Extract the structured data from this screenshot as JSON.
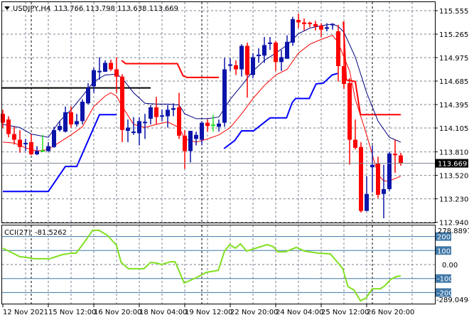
{
  "header": {
    "symbol": "USDJPY,H4",
    "ohlc_text": "113.766 113.798 113.638 113.669"
  },
  "colors": {
    "bull": "#0a14a8",
    "bear": "#ff0000",
    "doji": "#22dd22",
    "ma_fast": "#000080",
    "ma_slow": "#ff0000",
    "channel_low": "#0000ff",
    "channel_high": "#ff0000",
    "level": "#000000",
    "cci_line": "#80e020",
    "cci_levels": "#3f78a8",
    "grid": "#7a8290"
  },
  "chart_data": [
    {
      "type": "candlestick",
      "title": "USDJPY,H4",
      "ylim": [
        112.94,
        115.65
      ],
      "y_ticks": [
        "115.555",
        "115.265",
        "114.975",
        "114.685",
        "114.395",
        "114.105",
        "113.810",
        "113.520",
        "113.230",
        "112.940"
      ],
      "current_price": "113.669",
      "x_labels": [
        "12 Nov 2021",
        "15 Nov 12:00",
        "16 Nov 20:00",
        "18 Nov 04:00",
        "19 Nov 12:00",
        "22 Nov 20:00",
        "24 Nov 04:00",
        "25 Nov 12:00",
        "26 Nov 20:00"
      ],
      "x_label_bars": [
        0,
        8,
        16,
        24,
        32,
        40,
        48,
        56,
        64
      ],
      "period_separator_bars": [
        5,
        35,
        65
      ],
      "candles_ohlc": [
        [
          114.28,
          114.33,
          114.11,
          114.17
        ],
        [
          114.21,
          114.25,
          113.99,
          114.03
        ],
        [
          114.03,
          114.12,
          113.9,
          113.96
        ],
        [
          113.96,
          114.08,
          113.8,
          113.87
        ],
        [
          113.91,
          113.97,
          113.82,
          113.915
        ],
        [
          113.93,
          114.03,
          113.77,
          113.78
        ],
        [
          113.78,
          113.88,
          113.77,
          113.82
        ],
        [
          113.82,
          114.02,
          113.81,
          113.82
        ],
        [
          113.82,
          113.93,
          113.81,
          113.88
        ],
        [
          113.87,
          114.12,
          113.86,
          114.08
        ],
        [
          114.08,
          114.19,
          114.06,
          114.13
        ],
        [
          114.06,
          114.37,
          114.05,
          114.3
        ],
        [
          114.3,
          114.37,
          114.11,
          114.15
        ],
        [
          114.15,
          114.28,
          114.12,
          114.19
        ],
        [
          114.19,
          114.46,
          114.15,
          114.43
        ],
        [
          114.41,
          114.66,
          114.4,
          114.6
        ],
        [
          114.62,
          114.85,
          114.54,
          114.82
        ],
        [
          114.8,
          114.98,
          114.7,
          114.805
        ],
        [
          114.8,
          114.94,
          114.8,
          114.91
        ],
        [
          114.91,
          114.95,
          114.81,
          114.83
        ],
        [
          114.83,
          114.98,
          114.54,
          114.74
        ],
        [
          114.74,
          114.77,
          113.93,
          114.08
        ],
        [
          114.07,
          114.21,
          113.93,
          114.11
        ],
        [
          114.05,
          114.24,
          114.02,
          114.055
        ],
        [
          114.04,
          114.24,
          113.89,
          114.19
        ],
        [
          114.17,
          114.28,
          113.97,
          114.175
        ],
        [
          114.22,
          114.39,
          114.15,
          114.36
        ],
        [
          114.36,
          114.49,
          114.15,
          114.24
        ],
        [
          114.25,
          114.33,
          114.19,
          114.255
        ],
        [
          114.25,
          114.39,
          114.11,
          114.33
        ],
        [
          114.33,
          114.41,
          114.25,
          114.35
        ],
        [
          114.36,
          114.54,
          113.97,
          114.01
        ],
        [
          114.01,
          114.08,
          113.6,
          113.82
        ],
        [
          113.82,
          114.07,
          113.68,
          114.07
        ],
        [
          113.97,
          114.06,
          113.89,
          114.02
        ],
        [
          113.96,
          114.19,
          113.89,
          114.17
        ],
        [
          114.17,
          114.21,
          114.06,
          114.13
        ],
        [
          114.14,
          114.27,
          114.06,
          114.14
        ],
        [
          114.12,
          114.21,
          114.06,
          114.16
        ],
        [
          114.17,
          114.97,
          114.12,
          114.83
        ],
        [
          114.88,
          114.97,
          114.81,
          114.885
        ],
        [
          114.88,
          114.94,
          114.76,
          114.83
        ],
        [
          114.83,
          115.14,
          114.74,
          115.12
        ],
        [
          115.12,
          115.16,
          114.48,
          114.76
        ],
        [
          114.76,
          115.03,
          114.72,
          114.98
        ],
        [
          115.0,
          115.09,
          114.91,
          115.005
        ],
        [
          115.0,
          115.23,
          114.91,
          115.13
        ],
        [
          115.15,
          115.23,
          115.07,
          115.155
        ],
        [
          115.16,
          115.18,
          114.81,
          114.92
        ],
        [
          114.92,
          115.07,
          114.81,
          114.98
        ],
        [
          114.96,
          115.25,
          114.96,
          115.17
        ],
        [
          115.16,
          115.48,
          115.12,
          115.45
        ],
        [
          115.44,
          115.52,
          115.34,
          115.41
        ],
        [
          115.41,
          115.46,
          115.31,
          115.39
        ],
        [
          115.4,
          115.42,
          115.35,
          115.395
        ],
        [
          115.39,
          115.43,
          115.31,
          115.36
        ],
        [
          115.37,
          115.4,
          115.23,
          115.32
        ],
        [
          115.33,
          115.4,
          115.3,
          115.35
        ],
        [
          115.38,
          115.4,
          115.32,
          115.385
        ],
        [
          115.3,
          115.38,
          114.68,
          114.87
        ],
        [
          114.87,
          115.42,
          114.59,
          114.65
        ],
        [
          114.66,
          114.72,
          113.65,
          113.96
        ],
        [
          113.96,
          114.21,
          113.84,
          113.86
        ],
        [
          113.87,
          113.93,
          113.06,
          113.08
        ],
        [
          113.08,
          113.51,
          113.08,
          113.29
        ],
        [
          113.62,
          113.89,
          113.31,
          113.65
        ],
        [
          113.67,
          113.75,
          113.24,
          113.28
        ],
        [
          113.29,
          113.65,
          112.99,
          113.35
        ],
        [
          113.35,
          113.81,
          113.33,
          113.79
        ],
        [
          113.78,
          113.96,
          113.55,
          113.775
        ],
        [
          113.766,
          113.798,
          113.638,
          113.669
        ]
      ],
      "green_doji_bars": [
        7,
        37
      ],
      "ma_fast": [
        [
          0,
          114.15
        ],
        [
          3,
          114.11
        ],
        [
          5,
          114.03
        ],
        [
          8,
          113.99
        ],
        [
          10,
          114.19
        ],
        [
          12,
          114.33
        ],
        [
          14,
          114.5
        ],
        [
          16,
          114.68
        ],
        [
          18,
          114.76
        ],
        [
          20,
          114.77
        ],
        [
          21,
          114.72
        ],
        [
          23,
          114.54
        ],
        [
          25,
          114.41
        ],
        [
          27,
          114.4
        ],
        [
          29,
          114.4
        ],
        [
          31,
          114.39
        ],
        [
          32,
          114.28
        ],
        [
          34,
          114.22
        ],
        [
          36,
          114.22
        ],
        [
          38,
          114.24
        ],
        [
          40,
          114.46
        ],
        [
          42,
          114.63
        ],
        [
          44,
          114.81
        ],
        [
          46,
          114.94
        ],
        [
          48,
          115.03
        ],
        [
          50,
          115.13
        ],
        [
          52,
          115.27
        ],
        [
          54,
          115.34
        ],
        [
          56,
          115.37
        ],
        [
          58,
          115.39
        ],
        [
          59,
          115.36
        ],
        [
          60,
          115.29
        ],
        [
          62,
          114.98
        ],
        [
          64,
          114.54
        ],
        [
          66,
          114.19
        ],
        [
          68,
          113.99
        ],
        [
          69,
          113.96
        ],
        [
          70,
          113.93
        ]
      ],
      "ma_slow": [
        [
          0,
          113.93
        ],
        [
          2,
          113.92
        ],
        [
          4,
          113.86
        ],
        [
          6,
          113.82
        ],
        [
          8,
          113.84
        ],
        [
          10,
          113.93
        ],
        [
          12,
          114.02
        ],
        [
          14,
          114.12
        ],
        [
          16,
          114.37
        ],
        [
          18,
          114.5
        ],
        [
          19,
          114.54
        ],
        [
          20,
          114.5
        ],
        [
          21,
          114.37
        ],
        [
          23,
          114.15
        ],
        [
          25,
          114.11
        ],
        [
          27,
          114.15
        ],
        [
          29,
          114.18
        ],
        [
          31,
          114.11
        ],
        [
          32,
          113.97
        ],
        [
          34,
          113.93
        ],
        [
          36,
          113.97
        ],
        [
          38,
          114.02
        ],
        [
          40,
          114.11
        ],
        [
          42,
          114.28
        ],
        [
          44,
          114.47
        ],
        [
          46,
          114.63
        ],
        [
          48,
          114.76
        ],
        [
          50,
          114.83
        ],
        [
          52,
          115.03
        ],
        [
          54,
          115.14
        ],
        [
          56,
          115.2
        ],
        [
          58,
          115.25
        ],
        [
          59,
          115.16
        ],
        [
          60,
          114.98
        ],
        [
          61,
          114.81
        ],
        [
          62,
          114.46
        ],
        [
          64,
          114.02
        ],
        [
          66,
          113.53
        ],
        [
          67,
          113.45
        ],
        [
          68,
          113.45
        ],
        [
          70,
          113.51
        ]
      ],
      "channel_low": [
        [
          [
            0,
            113.32
          ],
          [
            8,
            113.32
          ],
          [
            11,
            113.63
          ],
          [
            13,
            113.63
          ],
          [
            17,
            114.27
          ],
          [
            20,
            114.27
          ]
        ],
        [
          [
            38.9,
            113.85
          ],
          [
            40.8,
            113.95
          ],
          [
            42,
            114.07
          ],
          [
            44.1,
            114.07
          ],
          [
            47,
            114.23
          ],
          [
            49.9,
            114.23
          ],
          [
            50.9,
            114.42
          ],
          [
            51.5,
            114.47
          ],
          [
            53.9,
            114.47
          ],
          [
            55.1,
            114.65
          ],
          [
            56.4,
            114.66
          ],
          [
            57.9,
            114.76
          ],
          [
            58.9,
            114.78
          ]
        ]
      ],
      "channel_high": [
        [
          [
            20.9,
            114.94
          ],
          [
            21.6,
            114.9
          ],
          [
            30.7,
            114.9
          ],
          [
            31.7,
            114.75
          ],
          [
            32.4,
            114.73
          ],
          [
            38,
            114.73
          ]
        ],
        [
          [
            59.9,
            115.42
          ],
          [
            60.4,
            114.7
          ],
          [
            62,
            114.68
          ],
          [
            62.9,
            114.27
          ],
          [
            70,
            114.27
          ]
        ]
      ],
      "level_line": {
        "price": 114.6,
        "from_bar": -0.3,
        "to_bar": 26
      }
    },
    {
      "type": "line",
      "title": "CCI(27)",
      "last_value": "-81.5262",
      "max_label": "278.8897",
      "min_label": "-289.0494",
      "ylim": [
        -289.0494,
        278.8897
      ],
      "levels": [
        200,
        100,
        -100,
        -200
      ],
      "level_labels": [
        "200",
        "100",
        "-100",
        "-200"
      ],
      "zero_label": "0.00",
      "points": [
        [
          0,
          117
        ],
        [
          3,
          56
        ],
        [
          4.2,
          51
        ],
        [
          5.5,
          41
        ],
        [
          8.2,
          41
        ],
        [
          10.5,
          71
        ],
        [
          12.1,
          81
        ],
        [
          12.9,
          81
        ],
        [
          14.2,
          152
        ],
        [
          15.8,
          244
        ],
        [
          16.9,
          244
        ],
        [
          18.4,
          208
        ],
        [
          20,
          137
        ],
        [
          20.8,
          15
        ],
        [
          22.1,
          -30
        ],
        [
          24.8,
          -30
        ],
        [
          26,
          15
        ],
        [
          27.1,
          10
        ],
        [
          27.9,
          0
        ],
        [
          29.5,
          20
        ],
        [
          30.3,
          20
        ],
        [
          31.9,
          -132
        ],
        [
          34.2,
          -91
        ],
        [
          35.8,
          -56
        ],
        [
          37.9,
          -41
        ],
        [
          39,
          96
        ],
        [
          39.9,
          142
        ],
        [
          40.9,
          117
        ],
        [
          41.8,
          147
        ],
        [
          42.9,
          96
        ],
        [
          44.5,
          117
        ],
        [
          46.5,
          142
        ],
        [
          47.6,
          127
        ],
        [
          48.4,
          91
        ],
        [
          49.7,
          91
        ],
        [
          51.6,
          122
        ],
        [
          53.1,
          96
        ],
        [
          55.5,
          81
        ],
        [
          57.6,
          76
        ],
        [
          59.1,
          5
        ],
        [
          59.8,
          -30
        ],
        [
          60.7,
          -157
        ],
        [
          61.8,
          -183
        ],
        [
          62.9,
          -259
        ],
        [
          63.9,
          -239
        ],
        [
          65,
          -173
        ],
        [
          66.4,
          -173
        ],
        [
          67.2,
          -152
        ],
        [
          68.2,
          -107
        ],
        [
          69.2,
          -86
        ],
        [
          70,
          -81.5
        ]
      ]
    }
  ]
}
